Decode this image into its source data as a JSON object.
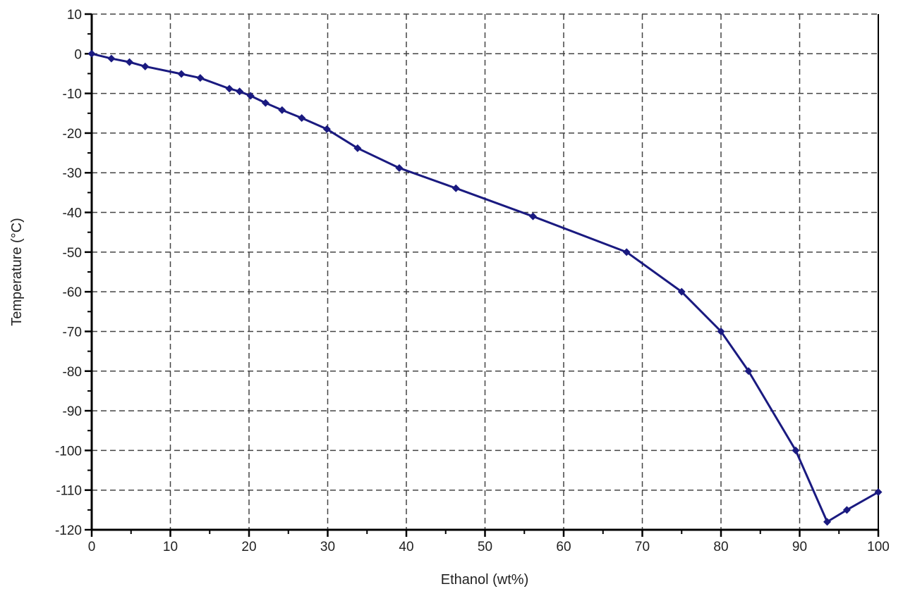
{
  "chart_data": {
    "type": "line",
    "title": "",
    "xlabel": "Ethanol (wt%)",
    "ylabel": "Temperature (°C)",
    "xlim": [
      0,
      100
    ],
    "ylim": [
      -120,
      10
    ],
    "xticks": [
      0,
      10,
      20,
      30,
      40,
      50,
      60,
      70,
      80,
      90,
      100
    ],
    "yticks": [
      10,
      0,
      -10,
      -20,
      -30,
      -40,
      -50,
      -60,
      -70,
      -80,
      -90,
      -100,
      -110,
      -120
    ],
    "grid": true,
    "legend": "none",
    "line_color": "#1a1a80",
    "series": [
      {
        "x": [
          0,
          2.5,
          4.8,
          6.8,
          11.4,
          13.8,
          17.5,
          18.8,
          20.2,
          22.1,
          24.2,
          26.7,
          29.9,
          33.8,
          39.1,
          46.3,
          56.1,
          68,
          75,
          80,
          83.5,
          89.5,
          93.5,
          96,
          100
        ],
        "y": [
          0,
          -1.2,
          -2.1,
          -3.2,
          -5.1,
          -6.1,
          -8.8,
          -9.5,
          -10.6,
          -12.4,
          -14.2,
          -16.2,
          -19,
          -23.8,
          -28.8,
          -33.9,
          -41,
          -50,
          -60,
          -70,
          -80,
          -100,
          -118,
          -115,
          -110.5
        ]
      }
    ]
  }
}
